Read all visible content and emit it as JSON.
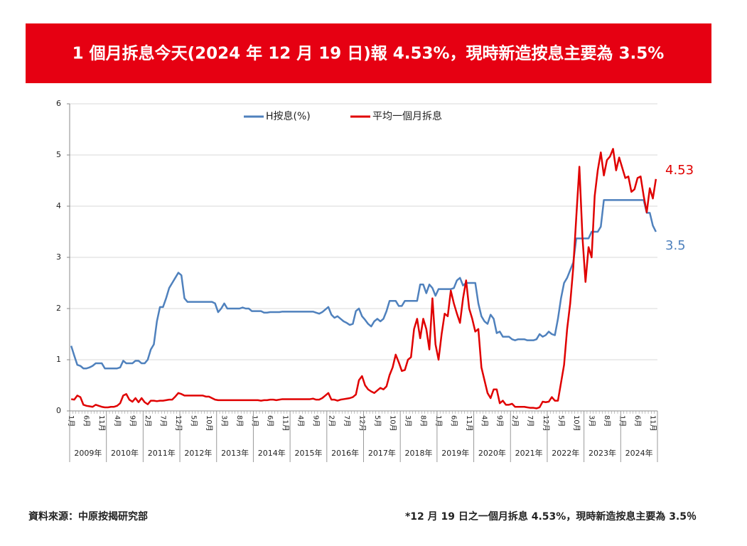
{
  "chart_data": {
    "type": "line",
    "title": "1 個月拆息今天(2024 年 12 月 19 日)報 4.53%，現時新造按息主要為 3.5%",
    "categories": [
      "1月",
      null,
      null,
      null,
      null,
      "6月",
      null,
      null,
      null,
      null,
      "11月",
      null,
      null,
      null,
      null,
      "4月",
      null,
      null,
      null,
      null,
      "9月",
      null,
      null,
      null,
      null,
      "2月",
      null,
      null,
      null,
      null,
      "7月",
      null,
      null,
      null,
      null,
      "12月",
      null,
      null,
      null,
      null,
      "5月",
      null,
      null,
      null,
      null,
      "10月",
      null,
      null,
      null,
      null,
      "3月",
      null,
      null,
      null,
      null,
      "8月",
      null,
      null,
      null,
      null,
      "1月",
      null,
      null,
      null,
      null,
      "6月",
      null,
      null,
      null,
      null,
      "11月",
      null,
      null,
      null,
      null,
      "4月",
      null,
      null,
      null,
      null,
      "9月",
      null,
      null,
      null,
      null,
      "2月",
      null,
      null,
      null,
      null,
      "7月",
      null,
      null,
      null,
      null,
      "12月",
      null,
      null,
      null,
      null,
      "5月",
      null,
      null,
      null,
      null,
      "10月",
      null,
      null,
      null,
      null,
      "3月",
      null,
      null,
      null,
      null,
      "8月",
      null,
      null,
      null,
      null,
      "1月",
      null,
      null,
      null,
      null,
      "6月",
      null,
      null,
      null,
      null,
      "11月",
      null,
      null,
      null,
      null,
      "4月",
      null,
      null,
      null,
      null,
      "9月",
      null,
      null,
      null,
      null,
      "2月",
      null,
      null,
      null,
      null,
      "7月",
      null,
      null,
      null,
      null,
      "12月",
      null,
      null,
      null,
      null,
      "5月",
      null,
      null,
      null,
      null,
      "10月",
      null,
      null,
      null,
      null,
      "3月",
      null,
      null,
      null,
      null,
      "8月",
      null,
      null,
      null,
      null,
      "1月",
      null,
      null,
      null,
      null,
      "6月",
      null,
      null,
      null,
      null,
      "11月",
      null
    ],
    "year_groups": [
      "2009年",
      "2010年",
      "2011年",
      "2012年",
      "2013年",
      "2014年",
      "2015年",
      "2016年",
      "2017年",
      "2018年",
      "2019年",
      "2020年",
      "2021年",
      "2022年",
      "2023年",
      "2024年"
    ],
    "series": [
      {
        "name": "H按息(%)",
        "color": "#4f81bd",
        "values": [
          1.27,
          1.08,
          0.9,
          0.88,
          0.83,
          0.83,
          0.85,
          0.88,
          0.93,
          0.93,
          0.93,
          0.83,
          0.83,
          0.83,
          0.83,
          0.83,
          0.85,
          0.98,
          0.93,
          0.93,
          0.93,
          0.98,
          0.98,
          0.93,
          0.93,
          1.0,
          1.2,
          1.3,
          1.75,
          2.03,
          2.03,
          2.2,
          2.4,
          2.5,
          2.6,
          2.7,
          2.65,
          2.2,
          2.13,
          2.13,
          2.13,
          2.13,
          2.13,
          2.13,
          2.13,
          2.13,
          2.13,
          2.1,
          1.93,
          2.0,
          2.1,
          2.0,
          2.0,
          2.0,
          2.0,
          2.0,
          2.02,
          2.0,
          2.0,
          1.95,
          1.95,
          1.95,
          1.95,
          1.92,
          1.92,
          1.93,
          1.93,
          1.93,
          1.93,
          1.94,
          1.94,
          1.94,
          1.94,
          1.94,
          1.94,
          1.94,
          1.94,
          1.94,
          1.94,
          1.94,
          1.92,
          1.9,
          1.93,
          1.98,
          2.03,
          1.88,
          1.82,
          1.85,
          1.8,
          1.75,
          1.72,
          1.68,
          1.7,
          1.95,
          2.0,
          1.85,
          1.78,
          1.7,
          1.65,
          1.75,
          1.8,
          1.75,
          1.8,
          1.95,
          2.15,
          2.15,
          2.15,
          2.05,
          2.05,
          2.15,
          2.15,
          2.15,
          2.15,
          2.15,
          2.47,
          2.47,
          2.3,
          2.47,
          2.4,
          2.25,
          2.38,
          2.38,
          2.38,
          2.38,
          2.38,
          2.4,
          2.55,
          2.6,
          2.45,
          2.5,
          2.5,
          2.5,
          2.5,
          2.1,
          1.85,
          1.75,
          1.7,
          1.88,
          1.8,
          1.52,
          1.55,
          1.45,
          1.45,
          1.45,
          1.4,
          1.38,
          1.4,
          1.4,
          1.4,
          1.38,
          1.38,
          1.38,
          1.4,
          1.5,
          1.45,
          1.48,
          1.55,
          1.5,
          1.48,
          1.8,
          2.2,
          2.5,
          2.6,
          2.75,
          2.9,
          3.37,
          3.37,
          3.37,
          3.37,
          3.37,
          3.5,
          3.5,
          3.5,
          3.6,
          4.12,
          4.12,
          4.12,
          4.12,
          4.12,
          4.12,
          4.12,
          4.12,
          4.12,
          4.12,
          4.12,
          4.12,
          4.12,
          4.12,
          3.87,
          3.87,
          3.62,
          3.5
        ]
      },
      {
        "name": "平均一個月拆息",
        "color": "#e00000",
        "values": [
          0.23,
          0.22,
          0.3,
          0.27,
          0.12,
          0.1,
          0.09,
          0.08,
          0.12,
          0.1,
          0.08,
          0.07,
          0.07,
          0.08,
          0.08,
          0.1,
          0.15,
          0.3,
          0.33,
          0.22,
          0.18,
          0.25,
          0.17,
          0.25,
          0.17,
          0.13,
          0.2,
          0.2,
          0.19,
          0.2,
          0.2,
          0.21,
          0.22,
          0.22,
          0.28,
          0.35,
          0.33,
          0.3,
          0.3,
          0.3,
          0.3,
          0.3,
          0.3,
          0.3,
          0.28,
          0.28,
          0.25,
          0.22,
          0.21,
          0.21,
          0.21,
          0.21,
          0.21,
          0.21,
          0.21,
          0.21,
          0.21,
          0.21,
          0.21,
          0.21,
          0.21,
          0.21,
          0.2,
          0.21,
          0.21,
          0.22,
          0.22,
          0.21,
          0.22,
          0.23,
          0.23,
          0.23,
          0.23,
          0.23,
          0.23,
          0.23,
          0.23,
          0.23,
          0.23,
          0.24,
          0.22,
          0.22,
          0.25,
          0.3,
          0.35,
          0.22,
          0.22,
          0.2,
          0.22,
          0.23,
          0.24,
          0.25,
          0.27,
          0.32,
          0.6,
          0.68,
          0.5,
          0.42,
          0.38,
          0.35,
          0.4,
          0.45,
          0.42,
          0.48,
          0.7,
          0.85,
          1.1,
          0.95,
          0.78,
          0.8,
          1.0,
          1.05,
          1.6,
          1.8,
          1.42,
          1.8,
          1.6,
          1.2,
          2.2,
          1.3,
          1.0,
          1.5,
          1.9,
          1.85,
          2.35,
          2.1,
          1.9,
          1.72,
          2.2,
          2.55,
          2.0,
          1.8,
          1.55,
          1.6,
          0.85,
          0.6,
          0.35,
          0.25,
          0.42,
          0.42,
          0.15,
          0.2,
          0.12,
          0.12,
          0.14,
          0.08,
          0.08,
          0.08,
          0.08,
          0.07,
          0.06,
          0.06,
          0.05,
          0.07,
          0.18,
          0.17,
          0.18,
          0.27,
          0.2,
          0.2,
          0.55,
          0.9,
          1.6,
          2.1,
          2.8,
          3.8,
          4.77,
          3.4,
          2.52,
          3.2,
          3.0,
          4.2,
          4.7,
          5.05,
          4.6,
          4.9,
          4.97,
          5.12,
          4.7,
          4.95,
          4.75,
          4.55,
          4.58,
          4.28,
          4.33,
          4.55,
          4.58,
          4.2,
          3.88,
          4.35,
          4.15,
          4.53
        ]
      }
    ],
    "annotations": [
      {
        "text": "4.53",
        "series": 1
      },
      {
        "text": "3.5",
        "series": 0
      }
    ],
    "ylim": [
      0,
      6
    ],
    "yticks": [
      0,
      1,
      2,
      3,
      4,
      5,
      6
    ],
    "grid": true,
    "legend": "top",
    "source": "資料來源：中原按揭研究部",
    "note": "*12 月 19 日之一個月拆息 4.53%，現時新造按息主要為 3.5％"
  }
}
